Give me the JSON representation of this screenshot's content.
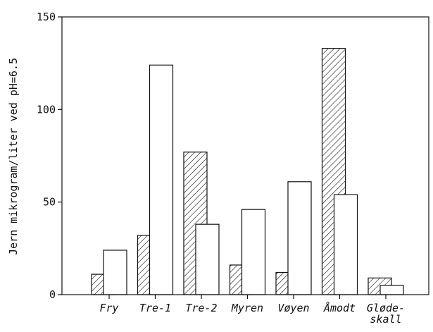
{
  "chart_data": {
    "type": "bar",
    "ylabel": "Jern mikrogram/liter ved pH=6.5",
    "ylim": [
      0,
      150
    ],
    "yticks": [
      0,
      50,
      100,
      150
    ],
    "categories": [
      [
        "Fry"
      ],
      [
        "Tre-1"
      ],
      [
        "Tre-2"
      ],
      [
        "Myren"
      ],
      [
        "Vøyen"
      ],
      [
        "Åmodt"
      ],
      [
        "Gløde-",
        "skall"
      ]
    ],
    "series": [
      {
        "pattern": "hatched",
        "values": [
          11,
          32,
          77,
          16,
          12,
          133,
          9
        ]
      },
      {
        "pattern": "open",
        "values": [
          24,
          124,
          38,
          46,
          61,
          54,
          5
        ]
      }
    ],
    "grid": false
  }
}
